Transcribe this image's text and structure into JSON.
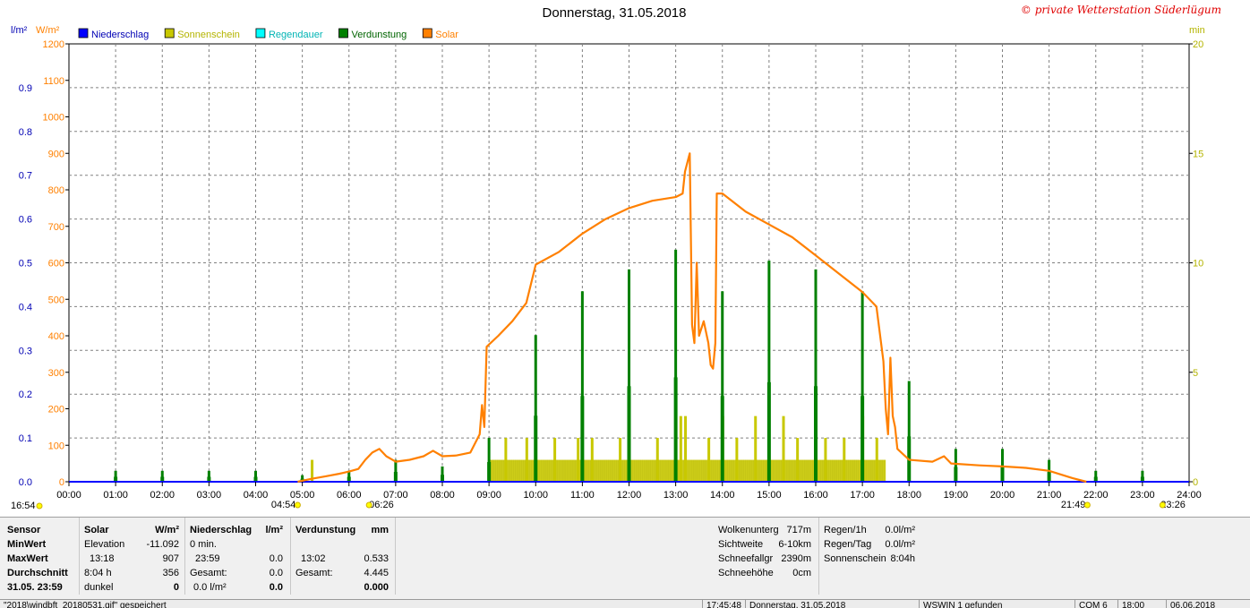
{
  "header": {
    "title": "Donnerstag, 31.05.2018",
    "copyright": "© private Wetterstation Süderlügum",
    "left_unit_1": "l/m²",
    "left_unit_2": "W/m²",
    "right_unit": "min"
  },
  "legend": [
    {
      "name": "Niederschlag",
      "color": "#0000ff",
      "text_color": "#0000b4"
    },
    {
      "name": "Sonnenschein",
      "color": "#c8c800",
      "text_color": "#b4b400"
    },
    {
      "name": "Regendauer",
      "color": "#00ffff",
      "text_color": "#00b4b4"
    },
    {
      "name": "Verdunstung",
      "color": "#008000",
      "text_color": "#006400"
    },
    {
      "name": "Solar",
      "color": "#ff8000",
      "text_color": "#ff8000"
    }
  ],
  "chart_data": {
    "type": "line",
    "title": "Donnerstag, 31.05.2018",
    "x_ticks": [
      "00:00",
      "01:00",
      "02:00",
      "03:00",
      "04:00",
      "05:00",
      "06:00",
      "07:00",
      "08:00",
      "09:00",
      "10:00",
      "11:00",
      "12:00",
      "13:00",
      "14:00",
      "15:00",
      "16:00",
      "17:00",
      "18:00",
      "19:00",
      "20:00",
      "21:00",
      "22:00",
      "23:00",
      "24:00"
    ],
    "xlim": [
      0,
      24
    ],
    "axes": {
      "left_precip": {
        "label": "l/m²",
        "ticks": [
          "0.0",
          "0.1",
          "0.2",
          "0.3",
          "0.4",
          "0.5",
          "0.6",
          "0.7",
          "0.8",
          "0.9"
        ],
        "ylim": [
          0,
          1.0
        ],
        "color": "#0000b4"
      },
      "left_solar": {
        "label": "W/m²",
        "ticks": [
          "0",
          "100",
          "200",
          "300",
          "400",
          "500",
          "600",
          "700",
          "800",
          "900",
          "1000",
          "1100",
          "1200"
        ],
        "ylim": [
          0,
          1200
        ],
        "color": "#ff8000"
      },
      "right_minutes": {
        "label": "min",
        "ticks": [
          "0",
          "5",
          "10",
          "15",
          "20"
        ],
        "ylim": [
          0,
          20
        ],
        "color": "#b4b400"
      }
    },
    "grid": true,
    "sun_markers": [
      {
        "label": "16:54",
        "hour": 0
      },
      {
        "label": "04:54",
        "hour": 4.9
      },
      {
        "label": "06:26",
        "hour": 6.43
      },
      {
        "label": "21:49",
        "hour": 21.82
      },
      {
        "label": "23:26",
        "hour": 23.43
      }
    ],
    "series": [
      {
        "name": "Solar",
        "axis": "left_solar",
        "color": "#ff8000",
        "points": [
          [
            4.9,
            0
          ],
          [
            5.2,
            8
          ],
          [
            5.5,
            15
          ],
          [
            5.8,
            22
          ],
          [
            6.0,
            28
          ],
          [
            6.2,
            35
          ],
          [
            6.35,
            60
          ],
          [
            6.5,
            80
          ],
          [
            6.65,
            90
          ],
          [
            6.8,
            70
          ],
          [
            7.0,
            55
          ],
          [
            7.3,
            60
          ],
          [
            7.6,
            70
          ],
          [
            7.8,
            85
          ],
          [
            8.0,
            70
          ],
          [
            8.3,
            72
          ],
          [
            8.6,
            80
          ],
          [
            8.8,
            130
          ],
          [
            8.85,
            210
          ],
          [
            8.9,
            150
          ],
          [
            8.95,
            370
          ],
          [
            9.2,
            400
          ],
          [
            9.5,
            440
          ],
          [
            9.8,
            490
          ],
          [
            10.0,
            595
          ],
          [
            10.5,
            630
          ],
          [
            11.0,
            680
          ],
          [
            11.5,
            720
          ],
          [
            12.0,
            750
          ],
          [
            12.5,
            770
          ],
          [
            13.0,
            780
          ],
          [
            13.15,
            790
          ],
          [
            13.2,
            850
          ],
          [
            13.3,
            900
          ],
          [
            13.35,
            430
          ],
          [
            13.4,
            380
          ],
          [
            13.45,
            600
          ],
          [
            13.5,
            400
          ],
          [
            13.6,
            440
          ],
          [
            13.7,
            380
          ],
          [
            13.75,
            320
          ],
          [
            13.8,
            310
          ],
          [
            13.85,
            380
          ],
          [
            13.88,
            790
          ],
          [
            14.0,
            790
          ],
          [
            14.5,
            740
          ],
          [
            15.0,
            705
          ],
          [
            15.5,
            670
          ],
          [
            16.0,
            620
          ],
          [
            16.5,
            570
          ],
          [
            17.0,
            520
          ],
          [
            17.3,
            480
          ],
          [
            17.45,
            330
          ],
          [
            17.5,
            200
          ],
          [
            17.55,
            130
          ],
          [
            17.6,
            340
          ],
          [
            17.65,
            180
          ],
          [
            17.7,
            150
          ],
          [
            17.75,
            90
          ],
          [
            18.0,
            60
          ],
          [
            18.5,
            55
          ],
          [
            18.75,
            70
          ],
          [
            18.9,
            50
          ],
          [
            19.5,
            45
          ],
          [
            20.0,
            42
          ],
          [
            20.5,
            38
          ],
          [
            21.0,
            30
          ],
          [
            21.5,
            10
          ],
          [
            21.8,
            0
          ]
        ]
      },
      {
        "name": "Verdunstung",
        "axis": "right_minutes",
        "color": "#008000",
        "bars": [
          [
            1.0,
            0.5
          ],
          [
            2.0,
            0.5
          ],
          [
            3.0,
            0.5
          ],
          [
            4.0,
            0.5
          ],
          [
            5.0,
            0.3
          ],
          [
            6.0,
            0.5
          ],
          [
            7.0,
            1
          ],
          [
            8.0,
            0.7
          ],
          [
            9.0,
            2
          ],
          [
            10.0,
            6.7
          ],
          [
            11.0,
            8.7
          ],
          [
            12.0,
            9.7
          ],
          [
            13.0,
            10.6
          ],
          [
            14.0,
            8.7
          ],
          [
            15.0,
            10.1
          ],
          [
            16.0,
            9.7
          ],
          [
            17.0,
            8.7
          ],
          [
            18.0,
            4.6
          ],
          [
            19.0,
            1.5
          ],
          [
            20.0,
            1.5
          ],
          [
            21.0,
            1
          ],
          [
            22.0,
            0.5
          ],
          [
            23.0,
            0.5
          ]
        ]
      },
      {
        "name": "Sonnenschein",
        "axis": "right_minutes",
        "color": "#c8c800",
        "segments": [
          [
            9.0,
            17.5,
            1
          ]
        ],
        "spikes": [
          [
            5.2,
            1
          ],
          [
            9.35,
            2
          ],
          [
            9.8,
            2
          ],
          [
            10.4,
            2
          ],
          [
            10.9,
            2
          ],
          [
            11.2,
            2
          ],
          [
            11.8,
            2
          ],
          [
            12.6,
            2
          ],
          [
            13.1,
            3
          ],
          [
            13.2,
            3
          ],
          [
            13.7,
            2
          ],
          [
            14.0,
            3
          ],
          [
            14.3,
            2
          ],
          [
            14.7,
            3
          ],
          [
            15.3,
            3
          ],
          [
            15.6,
            2
          ],
          [
            16.2,
            2
          ],
          [
            16.6,
            2
          ],
          [
            17.0,
            3
          ],
          [
            17.3,
            2
          ]
        ]
      },
      {
        "name": "Niederschlag",
        "axis": "left_precip",
        "color": "#0000ff",
        "points": [
          [
            0,
            0
          ],
          [
            24,
            0
          ]
        ]
      }
    ]
  },
  "stats": {
    "sensor_header": "Sensor",
    "rows": [
      "MinWert",
      "MaxWert",
      "Durchschnitt",
      "31.05. 23:59"
    ],
    "solar": {
      "header": "Solar",
      "unit": "W/m²",
      "row1_label": "Elevation",
      "row1_value": "-11.092",
      "row2_label": "13:18",
      "row2_value": "907",
      "row3_label": "8:04 h",
      "row3_value": "356",
      "row4_label": "dunkel",
      "row4_value": "0"
    },
    "niederschlag": {
      "header": "Niederschlag",
      "unit": "l/m²",
      "row1_label": "0 min.",
      "row1_value": "",
      "row2_label": "23:59",
      "row2_value": "0.0",
      "row3_label": "Gesamt:",
      "row3_value": "0.0",
      "row4_label": "0.0 l/m²",
      "row4_value": "0.0"
    },
    "verdunstung": {
      "header": "Verdunstung",
      "unit": "mm",
      "row2_label": "13:02",
      "row2_value": "0.533",
      "row3_label": "Gesamt:",
      "row3_value": "4.445",
      "row4_value": "0.000"
    },
    "right1": [
      {
        "label": "Wolkenunterg",
        "value": "717m"
      },
      {
        "label": "Sichtweite",
        "value": "6-10km"
      },
      {
        "label": "Schneefallgr",
        "value": "2390m"
      },
      {
        "label": "Schneehöhe",
        "value": "0cm"
      }
    ],
    "right2": [
      {
        "label": "Regen/1h",
        "value": "0.0l/m²"
      },
      {
        "label": "Regen/Tag",
        "value": "0.0l/m²"
      },
      {
        "label": "Sonnenschein",
        "value": "8:04h"
      }
    ]
  },
  "statusbar": {
    "file": "\"2018\\windbft_20180531.gif\" gespeichert",
    "time": "17:45:48",
    "date": "Donnerstag, 31.05.2018",
    "device": "WSWIN 1 gefunden",
    "port": "COM 6",
    "clock": "18:00",
    "today": "06.06.2018"
  }
}
